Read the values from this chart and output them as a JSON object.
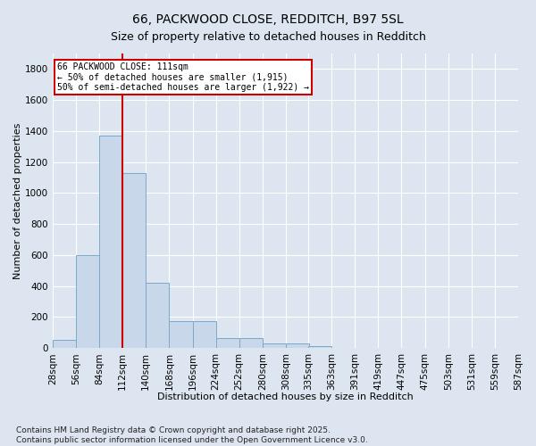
{
  "title_line1": "66, PACKWOOD CLOSE, REDDITCH, B97 5SL",
  "title_line2": "Size of property relative to detached houses in Redditch",
  "xlabel": "Distribution of detached houses by size in Redditch",
  "ylabel": "Number of detached properties",
  "footnote": "Contains HM Land Registry data © Crown copyright and database right 2025.\nContains public sector information licensed under the Open Government Licence v3.0.",
  "bin_edges": [
    28,
    56,
    84,
    112,
    140,
    168,
    196,
    224,
    252,
    280,
    308,
    335,
    363,
    391,
    419,
    447,
    475,
    503,
    531,
    559,
    587
  ],
  "bar_heights": [
    55,
    600,
    1370,
    1130,
    420,
    175,
    175,
    65,
    65,
    28,
    28,
    10,
    0,
    0,
    0,
    0,
    0,
    0,
    0,
    0
  ],
  "bar_color": "#c8d8ea",
  "bar_edge_color": "#7aaac8",
  "vline_x": 112,
  "vline_color": "#cc0000",
  "annotation_text": "66 PACKWOOD CLOSE: 111sqm\n← 50% of detached houses are smaller (1,915)\n50% of semi-detached houses are larger (1,922) →",
  "annotation_box_color": "#ffffff",
  "annotation_box_edge_color": "#cc0000",
  "ylim": [
    0,
    1900
  ],
  "yticks": [
    0,
    200,
    400,
    600,
    800,
    1000,
    1200,
    1400,
    1600,
    1800
  ],
  "bg_color": "#dde6f0",
  "plot_bg_color": "#dde6f0",
  "grid_color": "#ffffff",
  "title_fontsize": 10,
  "axis_label_fontsize": 8,
  "tick_fontsize": 7.5,
  "footnote_fontsize": 6.5
}
